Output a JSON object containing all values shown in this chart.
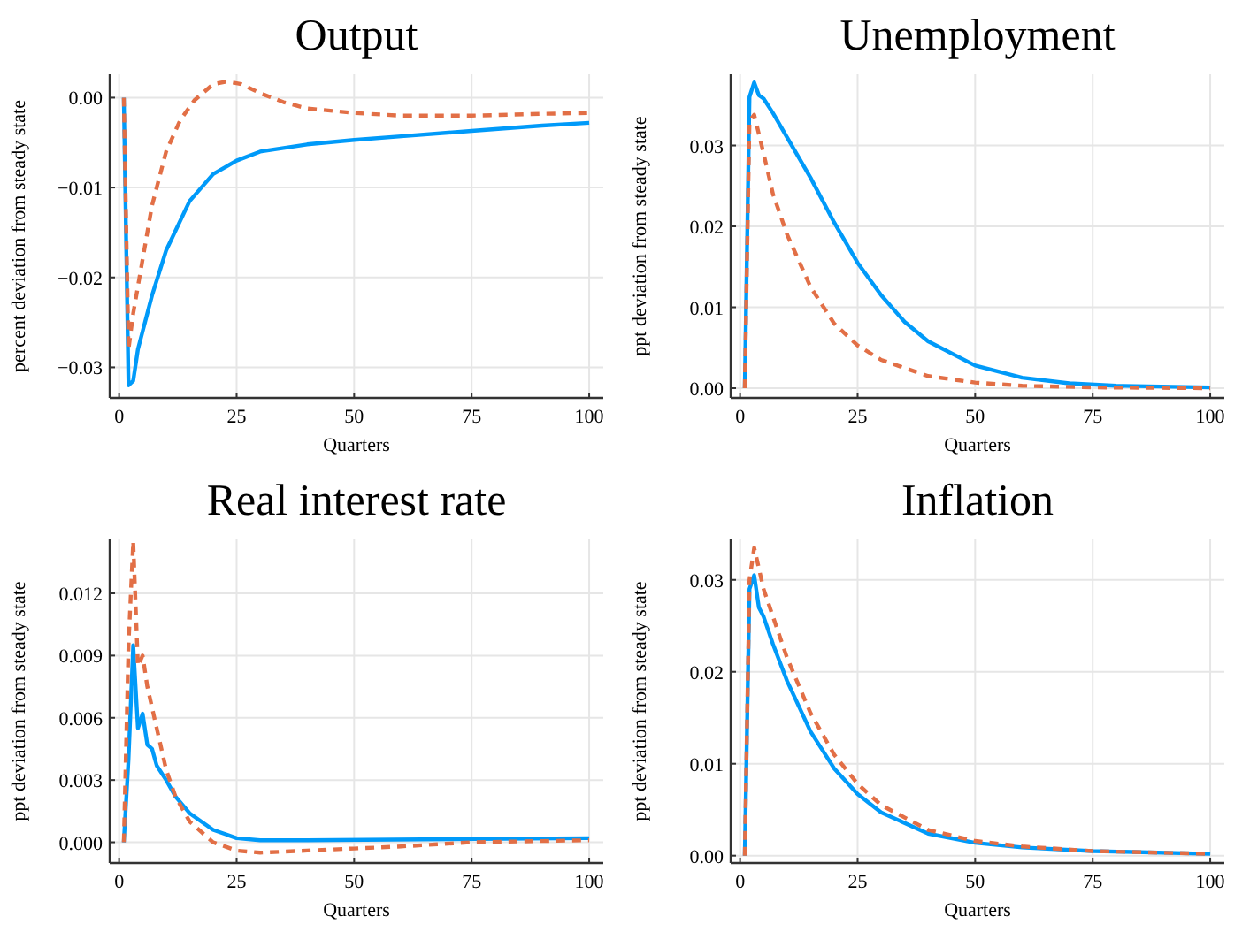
{
  "chart_data": [
    {
      "type": "line",
      "title": "Output",
      "xlabel": "Quarters",
      "ylabel": "percent deviation from steady state",
      "xlim": [
        -2,
        103
      ],
      "ylim": [
        -0.0334,
        0.0026
      ],
      "xticks": [
        0,
        25,
        50,
        75,
        100
      ],
      "yticks": [
        {
          "value": -0.03,
          "label": "−0.03"
        },
        {
          "value": -0.02,
          "label": "−0.02"
        },
        {
          "value": -0.01,
          "label": "−0.01"
        },
        {
          "value": 0,
          "label": "0.00"
        }
      ],
      "grid": true,
      "series": [
        {
          "color": "#009af9",
          "line_style": "solid",
          "x": [
            1,
            2,
            3,
            4,
            5,
            7,
            10,
            15,
            20,
            25,
            30,
            40,
            50,
            60,
            75,
            90,
            100
          ],
          "values": [
            0,
            -0.032,
            -0.0315,
            -0.028,
            -0.026,
            -0.022,
            -0.017,
            -0.0115,
            -0.0085,
            -0.007,
            -0.006,
            -0.0052,
            -0.0047,
            -0.0043,
            -0.0037,
            -0.0031,
            -0.0028
          ]
        },
        {
          "color": "#e26f46",
          "line_style": "dashed",
          "x": [
            1,
            2,
            3,
            5,
            7,
            10,
            13,
            16,
            20,
            23,
            26,
            30,
            35,
            40,
            50,
            60,
            75,
            90,
            100
          ],
          "values": [
            0,
            -0.028,
            -0.024,
            -0.018,
            -0.012,
            -0.006,
            -0.0025,
            -0.0003,
            0.0015,
            0.0018,
            0.0015,
            0.0005,
            -0.0005,
            -0.0012,
            -0.0017,
            -0.002,
            -0.002,
            -0.0018,
            -0.0017
          ]
        }
      ]
    },
    {
      "type": "line",
      "title": "Unemployment",
      "xlabel": "Quarters",
      "ylabel": "ppt deviation from steady state",
      "xlim": [
        -2,
        103
      ],
      "ylim": [
        -0.0012,
        0.0388
      ],
      "xticks": [
        0,
        25,
        50,
        75,
        100
      ],
      "yticks": [
        {
          "value": 0,
          "label": "0.00"
        },
        {
          "value": 0.01,
          "label": "0.01"
        },
        {
          "value": 0.02,
          "label": "0.02"
        },
        {
          "value": 0.03,
          "label": "0.03"
        }
      ],
      "grid": true,
      "series": [
        {
          "color": "#009af9",
          "line_style": "solid",
          "x": [
            1,
            2,
            3,
            4,
            5,
            7,
            10,
            15,
            20,
            25,
            30,
            35,
            40,
            50,
            60,
            70,
            80,
            100
          ],
          "values": [
            0,
            0.036,
            0.0378,
            0.0362,
            0.0358,
            0.034,
            0.031,
            0.026,
            0.0205,
            0.0155,
            0.0115,
            0.0082,
            0.0058,
            0.0028,
            0.0013,
            0.0006,
            0.0003,
            0.0001
          ]
        },
        {
          "color": "#e26f46",
          "line_style": "dashed",
          "x": [
            1,
            2,
            3,
            5,
            7,
            10,
            15,
            20,
            25,
            30,
            40,
            50,
            60,
            75,
            100
          ],
          "values": [
            0,
            0.033,
            0.0338,
            0.029,
            0.024,
            0.019,
            0.0125,
            0.008,
            0.0053,
            0.0035,
            0.0015,
            0.0007,
            0.0003,
            0.0001,
            0
          ]
        }
      ]
    },
    {
      "type": "line",
      "title": "Real interest rate",
      "xlabel": "Quarters",
      "ylabel": "ppt deviation from steady state",
      "xlim": [
        -2,
        103
      ],
      "ylim": [
        -0.001,
        0.0146
      ],
      "xticks": [
        0,
        25,
        50,
        75,
        100
      ],
      "yticks": [
        {
          "value": 0,
          "label": "0.000"
        },
        {
          "value": 0.003,
          "label": "0.003"
        },
        {
          "value": 0.006,
          "label": "0.006"
        },
        {
          "value": 0.009,
          "label": "0.009"
        },
        {
          "value": 0.012,
          "label": "0.012"
        }
      ],
      "grid": true,
      "series": [
        {
          "color": "#009af9",
          "line_style": "solid",
          "x": [
            1,
            2,
            3,
            4,
            5,
            6,
            7,
            8,
            10,
            12,
            15,
            20,
            25,
            30,
            40,
            100
          ],
          "values": [
            0,
            0.004,
            0.0095,
            0.0055,
            0.0062,
            0.0047,
            0.0045,
            0.0037,
            0.003,
            0.0022,
            0.0014,
            0.0006,
            0.0002,
            0.0001,
            0.0001,
            0.0002
          ]
        },
        {
          "color": "#e26f46",
          "line_style": "dashed",
          "x": [
            1,
            2,
            3,
            4,
            5,
            6,
            8,
            10,
            12,
            15,
            20,
            25,
            30,
            40,
            50,
            60,
            75,
            100
          ],
          "values": [
            0,
            0.0095,
            0.0145,
            0.0085,
            0.009,
            0.0075,
            0.0055,
            0.0035,
            0.0022,
            0.001,
            0,
            -0.0004,
            -0.0005,
            -0.0004,
            -0.0003,
            -0.0002,
            0,
            0.0001
          ]
        }
      ]
    },
    {
      "type": "line",
      "title": "Inflation",
      "xlabel": "Quarters",
      "ylabel": "ppt deviation from steady state",
      "xlim": [
        -2,
        103
      ],
      "ylim": [
        -0.0008,
        0.0344
      ],
      "xticks": [
        0,
        25,
        50,
        75,
        100
      ],
      "yticks": [
        {
          "value": 0,
          "label": "0.00"
        },
        {
          "value": 0.01,
          "label": "0.01"
        },
        {
          "value": 0.02,
          "label": "0.02"
        },
        {
          "value": 0.03,
          "label": "0.03"
        }
      ],
      "grid": true,
      "series": [
        {
          "color": "#009af9",
          "line_style": "solid",
          "x": [
            1,
            2,
            3,
            4,
            5,
            7,
            10,
            15,
            20,
            25,
            30,
            40,
            50,
            60,
            75,
            100
          ],
          "values": [
            0,
            0.029,
            0.0305,
            0.027,
            0.026,
            0.023,
            0.019,
            0.0135,
            0.0095,
            0.0067,
            0.0047,
            0.0024,
            0.0014,
            0.0009,
            0.0005,
            0.0002
          ]
        },
        {
          "color": "#e26f46",
          "line_style": "dashed",
          "x": [
            1,
            2,
            3,
            5,
            7,
            10,
            15,
            20,
            25,
            30,
            40,
            50,
            60,
            75,
            100
          ],
          "values": [
            0,
            0.03,
            0.0335,
            0.029,
            0.026,
            0.0215,
            0.0155,
            0.011,
            0.0078,
            0.0055,
            0.0028,
            0.0016,
            0.001,
            0.0005,
            0.0002
          ]
        }
      ]
    }
  ]
}
